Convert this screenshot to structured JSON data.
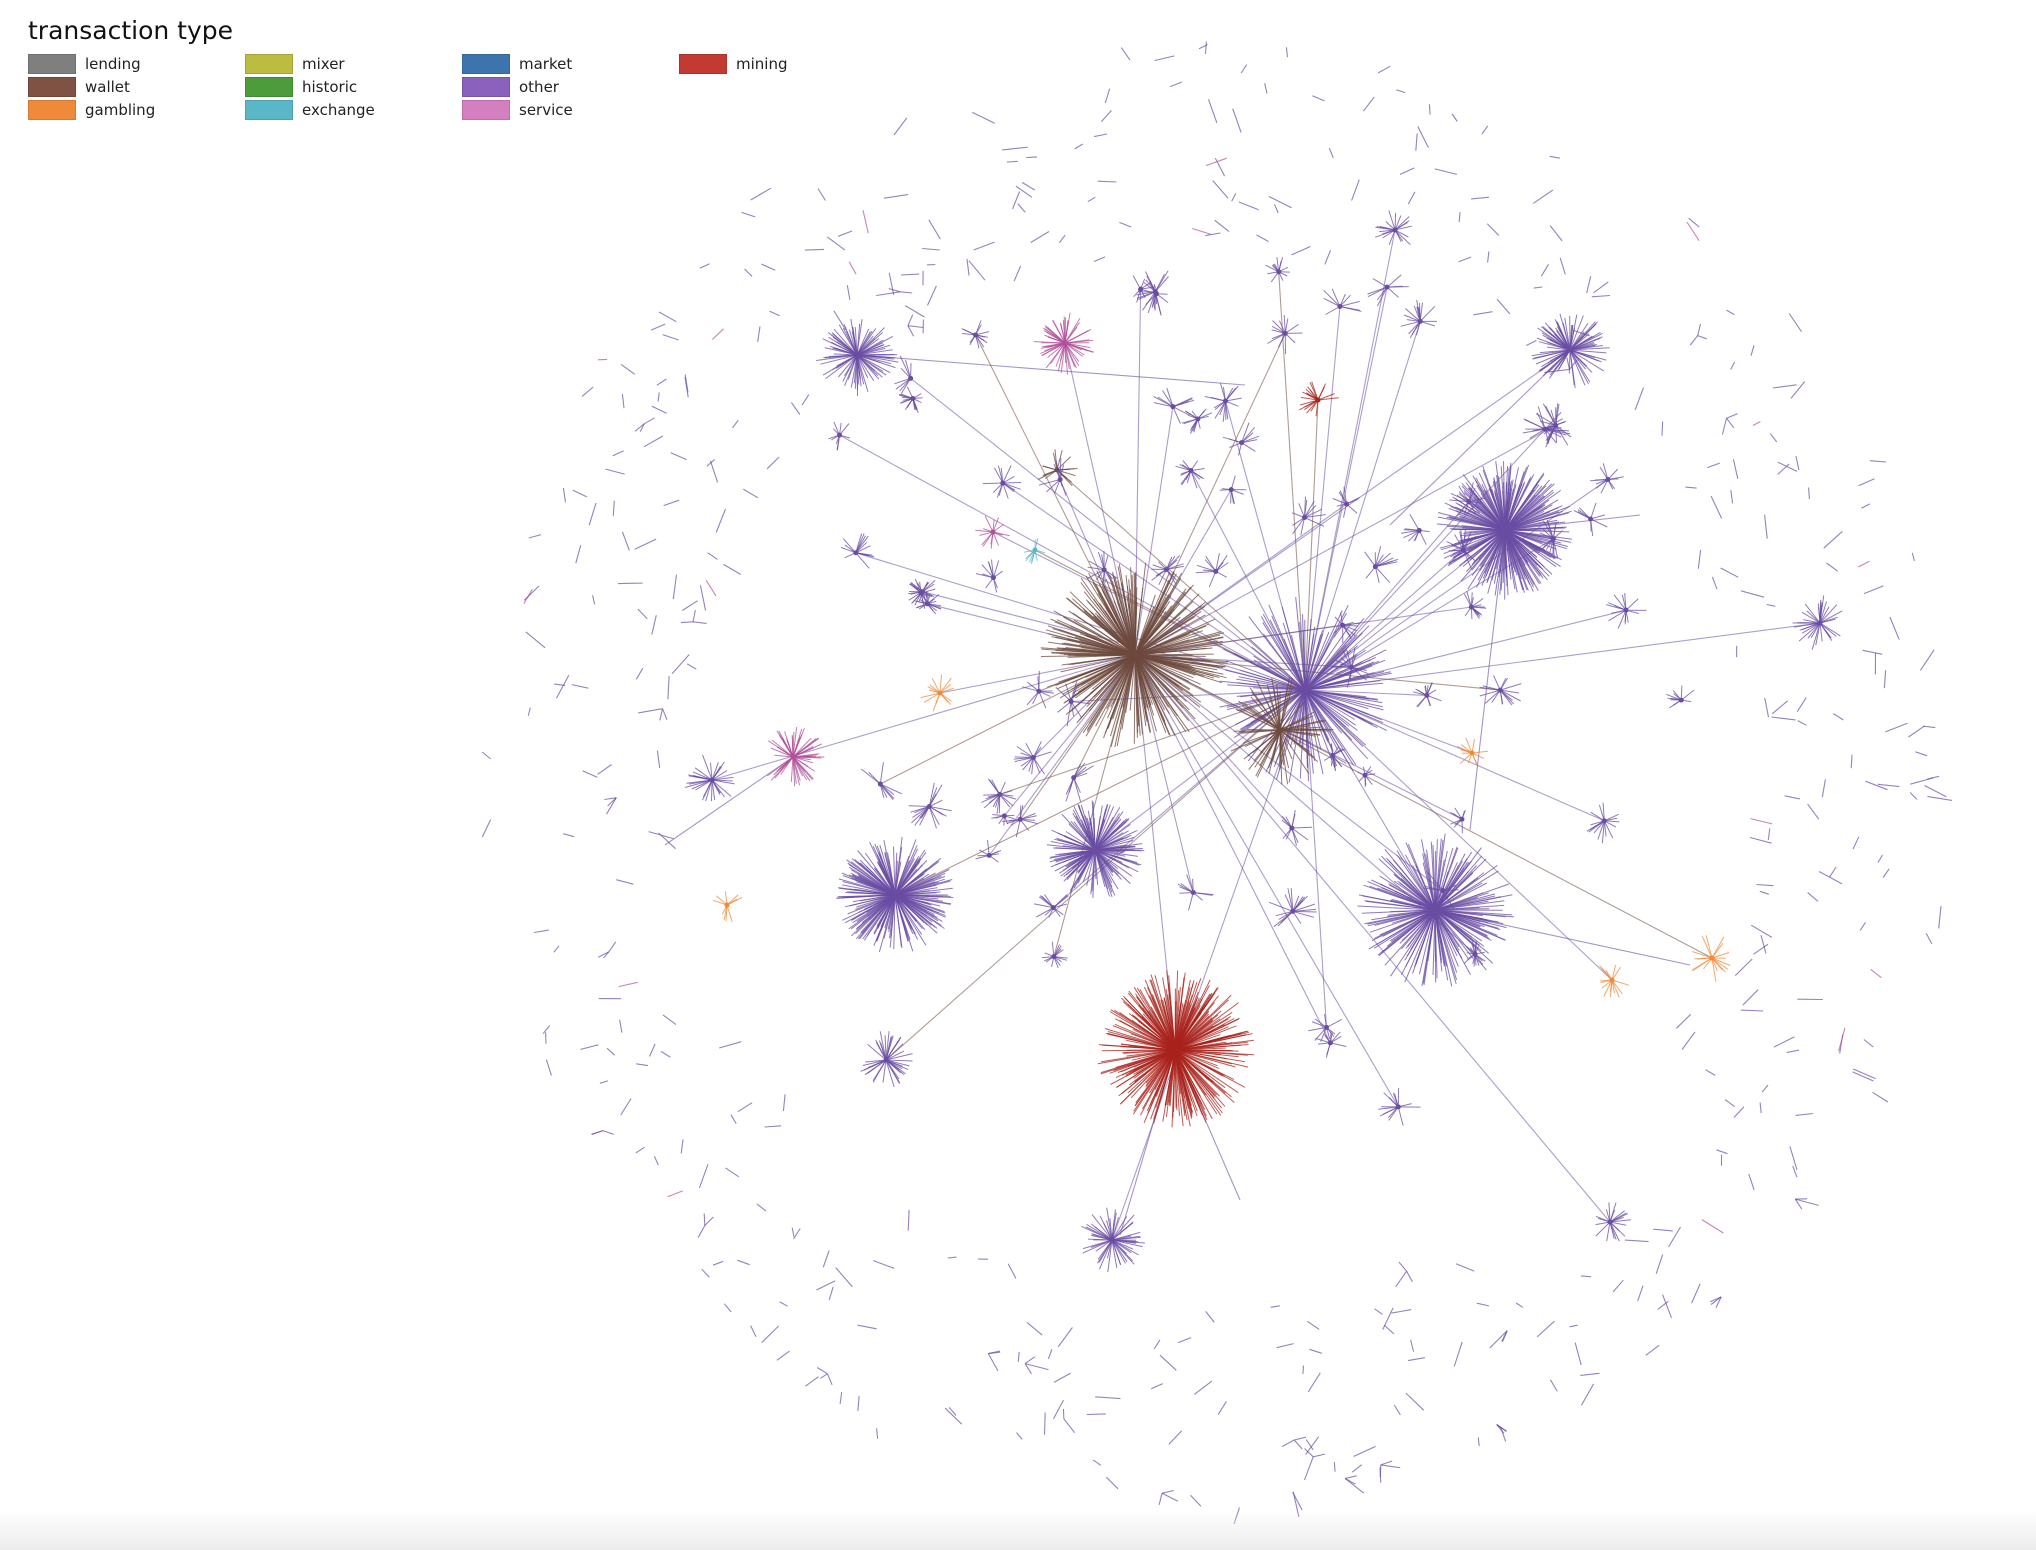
{
  "legend": {
    "title": "transaction type",
    "items": [
      {
        "label": "lending",
        "color": "#7f7f7f"
      },
      {
        "label": "wallet",
        "color": "#7f5244"
      },
      {
        "label": "gambling",
        "color": "#ef8a3a"
      },
      {
        "label": "mixer",
        "color": "#bcbd40"
      },
      {
        "label": "historic",
        "color": "#4c9c3c"
      },
      {
        "label": "exchange",
        "color": "#5ab7c8"
      },
      {
        "label": "market",
        "color": "#3e74ad"
      },
      {
        "label": "other",
        "color": "#8a62bd"
      },
      {
        "label": "service",
        "color": "#d47fc0"
      },
      {
        "label": "mining",
        "color": "#c23a32"
      }
    ]
  },
  "graph": {
    "edge_color_default": "#6a4ca3",
    "node_types": [
      "other",
      "wallet",
      "mining",
      "service",
      "gambling",
      "exchange",
      "mixer"
    ]
  }
}
